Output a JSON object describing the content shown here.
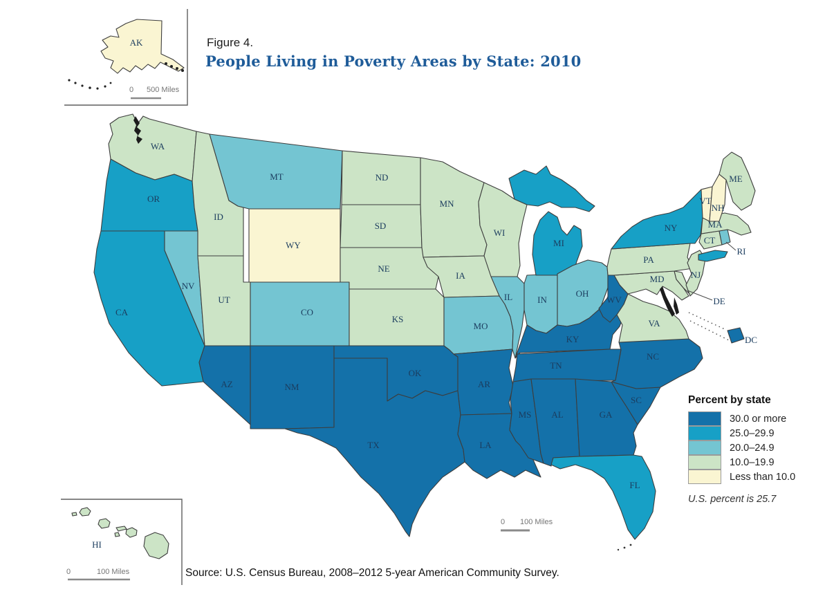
{
  "figure": {
    "label": "Figure 4.",
    "title": "People Living in Poverty Areas by State: 2010"
  },
  "source": {
    "text": "Source: U.S. Census Bureau, 2008–2012 5-year American Community Survey."
  },
  "legend": {
    "title": "Percent by state",
    "note": "U.S. percent is 25.7",
    "classes": [
      {
        "label": "30.0 or more",
        "color": "#1471A9"
      },
      {
        "label": "25.0–29.9",
        "color": "#17A0C6"
      },
      {
        "label": "20.0–24.9",
        "color": "#74C5D2"
      },
      {
        "label": "10.0–19.9",
        "color": "#CCE4C6"
      },
      {
        "label": "Less than 10.0",
        "color": "#FAF5D2"
      }
    ]
  },
  "main_scale": {
    "zero": "0",
    "distance": "100 Miles"
  },
  "insets": {
    "alaska": {
      "label": "AK",
      "class": "Less than 10.0",
      "scale": {
        "zero": "0",
        "distance": "500 Miles"
      }
    },
    "hawaii": {
      "label": "HI",
      "class": "10.0–19.9",
      "scale": {
        "zero": "0",
        "distance": "100 Miles"
      }
    }
  },
  "chart_data": {
    "type": "choropleth-map",
    "title": "People Living in Poverty Areas by State: 2010",
    "unit": "percent of people living in poverty areas",
    "us_percent": 25.7,
    "class_breaks": [
      "30.0 or more",
      "25.0–29.9",
      "20.0–24.9",
      "10.0–19.9",
      "Less than 10.0"
    ],
    "states": [
      {
        "abbr": "WA",
        "class": "10.0–19.9"
      },
      {
        "abbr": "OR",
        "class": "25.0–29.9"
      },
      {
        "abbr": "CA",
        "class": "25.0–29.9"
      },
      {
        "abbr": "NV",
        "class": "20.0–24.9"
      },
      {
        "abbr": "ID",
        "class": "10.0–19.9"
      },
      {
        "abbr": "MT",
        "class": "20.0–24.9"
      },
      {
        "abbr": "WY",
        "class": "Less than 10.0"
      },
      {
        "abbr": "UT",
        "class": "10.0–19.9"
      },
      {
        "abbr": "CO",
        "class": "20.0–24.9"
      },
      {
        "abbr": "AZ",
        "class": "30.0 or more"
      },
      {
        "abbr": "NM",
        "class": "30.0 or more"
      },
      {
        "abbr": "ND",
        "class": "10.0–19.9"
      },
      {
        "abbr": "SD",
        "class": "10.0–19.9"
      },
      {
        "abbr": "NE",
        "class": "10.0–19.9"
      },
      {
        "abbr": "KS",
        "class": "10.0–19.9"
      },
      {
        "abbr": "OK",
        "class": "30.0 or more"
      },
      {
        "abbr": "TX",
        "class": "30.0 or more"
      },
      {
        "abbr": "MN",
        "class": "10.0–19.9"
      },
      {
        "abbr": "IA",
        "class": "10.0–19.9"
      },
      {
        "abbr": "MO",
        "class": "20.0–24.9"
      },
      {
        "abbr": "AR",
        "class": "30.0 or more"
      },
      {
        "abbr": "LA",
        "class": "30.0 or more"
      },
      {
        "abbr": "WI",
        "class": "10.0–19.9"
      },
      {
        "abbr": "IL",
        "class": "20.0–24.9"
      },
      {
        "abbr": "IN",
        "class": "20.0–24.9"
      },
      {
        "abbr": "MI",
        "class": "25.0–29.9"
      },
      {
        "abbr": "OH",
        "class": "20.0–24.9"
      },
      {
        "abbr": "KY",
        "class": "30.0 or more"
      },
      {
        "abbr": "TN",
        "class": "30.0 or more"
      },
      {
        "abbr": "MS",
        "class": "30.0 or more"
      },
      {
        "abbr": "AL",
        "class": "30.0 or more"
      },
      {
        "abbr": "GA",
        "class": "30.0 or more"
      },
      {
        "abbr": "FL",
        "class": "25.0–29.9"
      },
      {
        "abbr": "SC",
        "class": "30.0 or more"
      },
      {
        "abbr": "NC",
        "class": "30.0 or more"
      },
      {
        "abbr": "VA",
        "class": "10.0–19.9"
      },
      {
        "abbr": "WV",
        "class": "30.0 or more"
      },
      {
        "abbr": "MD",
        "class": "10.0–19.9"
      },
      {
        "abbr": "DE",
        "class": "10.0–19.9"
      },
      {
        "abbr": "PA",
        "class": "10.0–19.9"
      },
      {
        "abbr": "NJ",
        "class": "10.0–19.9"
      },
      {
        "abbr": "NY",
        "class": "25.0–29.9"
      },
      {
        "abbr": "CT",
        "class": "10.0–19.9"
      },
      {
        "abbr": "RI",
        "class": "20.0–24.9"
      },
      {
        "abbr": "MA",
        "class": "10.0–19.9"
      },
      {
        "abbr": "VT",
        "class": "Less than 10.0"
      },
      {
        "abbr": "NH",
        "class": "Less than 10.0"
      },
      {
        "abbr": "ME",
        "class": "10.0–19.9"
      },
      {
        "abbr": "DC",
        "class": "30.0 or more"
      },
      {
        "abbr": "AK",
        "class": "Less than 10.0"
      },
      {
        "abbr": "HI",
        "class": "10.0–19.9"
      }
    ]
  }
}
